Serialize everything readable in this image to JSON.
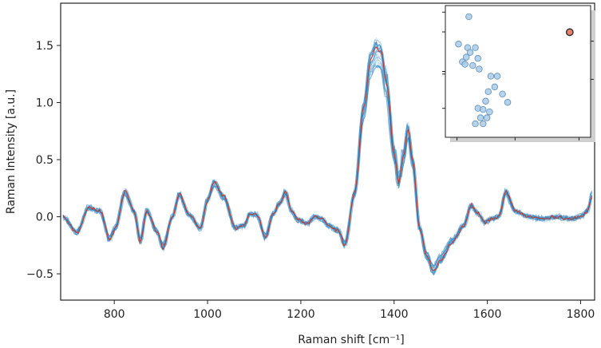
{
  "chart_data": [
    {
      "type": "line",
      "xlabel": "Raman shift [cm⁻¹]",
      "ylabel": "Raman Intensity [a.u.]",
      "xlim": [
        685,
        1830
      ],
      "ylim": [
        -0.73,
        1.87
      ],
      "xticks": [
        {
          "value": 800,
          "label": "800"
        },
        {
          "value": 1000,
          "label": "1000"
        },
        {
          "value": 1200,
          "label": "1200"
        },
        {
          "value": 1400,
          "label": "1400"
        },
        {
          "value": 1600,
          "label": "1600"
        },
        {
          "value": 1800,
          "label": "1800"
        }
      ],
      "yticks": [
        {
          "value": -0.5,
          "label": "−0.5"
        },
        {
          "value": 0.0,
          "label": "0.0"
        },
        {
          "value": 0.5,
          "label": "0.5"
        },
        {
          "value": 1.0,
          "label": "1.0"
        },
        {
          "value": 1.5,
          "label": "1.5"
        }
      ],
      "grid": false,
      "colors": {
        "background_spectra": "#5b9fd0",
        "highlighted_spectrum": "#c0392b",
        "axes": "#222222"
      },
      "background_spectra_count": 25,
      "highlighted_spectrum": {
        "x": [
          690,
          720,
          745,
          770,
          790,
          803,
          823,
          843,
          856,
          870,
          890,
          905,
          925,
          940,
          960,
          985,
          1000,
          1015,
          1035,
          1060,
          1080,
          1090,
          1105,
          1125,
          1140,
          1155,
          1168,
          1180,
          1195,
          1215,
          1230,
          1245,
          1260,
          1280,
          1295,
          1315,
          1335,
          1350,
          1362,
          1372,
          1385,
          1400,
          1410,
          1420,
          1430,
          1440,
          1455,
          1470,
          1485,
          1500,
          1525,
          1550,
          1565,
          1580,
          1595,
          1610,
          1625,
          1640,
          1660,
          1690,
          1720,
          1750,
          1780,
          1800,
          1815,
          1825
        ],
        "y": [
          0.0,
          -0.14,
          0.08,
          0.05,
          -0.2,
          -0.1,
          0.22,
          0.05,
          -0.22,
          0.06,
          -0.12,
          -0.27,
          0.0,
          0.2,
          0.02,
          -0.1,
          0.15,
          0.3,
          0.18,
          -0.1,
          -0.08,
          0.02,
          0.02,
          -0.18,
          0.02,
          0.12,
          0.22,
          0.05,
          -0.03,
          -0.06,
          0.0,
          -0.02,
          -0.08,
          -0.12,
          -0.25,
          0.2,
          0.95,
          1.38,
          1.48,
          1.45,
          1.15,
          0.55,
          0.3,
          0.52,
          0.78,
          0.5,
          -0.1,
          -0.35,
          -0.48,
          -0.38,
          -0.22,
          -0.08,
          0.1,
          0.03,
          -0.05,
          -0.02,
          0.0,
          0.22,
          0.05,
          0.0,
          -0.02,
          0.0,
          -0.02,
          0.0,
          0.05,
          0.2
        ]
      }
    },
    {
      "type": "scatter",
      "inset": true,
      "xlim": [
        0,
        10
      ],
      "ylim": [
        0,
        10
      ],
      "points": [
        {
          "x": 1.2,
          "y": 9.6
        },
        {
          "x": 0.4,
          "y": 7.3
        },
        {
          "x": 1.1,
          "y": 7.0
        },
        {
          "x": 1.7,
          "y": 7.0
        },
        {
          "x": 1.3,
          "y": 6.6
        },
        {
          "x": 1.0,
          "y": 6.2
        },
        {
          "x": 0.7,
          "y": 5.8
        },
        {
          "x": 1.9,
          "y": 6.1
        },
        {
          "x": 0.9,
          "y": 5.6
        },
        {
          "x": 1.5,
          "y": 5.5
        },
        {
          "x": 2.0,
          "y": 5.2
        },
        {
          "x": 2.9,
          "y": 4.6
        },
        {
          "x": 3.4,
          "y": 4.6
        },
        {
          "x": 3.2,
          "y": 3.7
        },
        {
          "x": 2.7,
          "y": 3.3
        },
        {
          "x": 3.8,
          "y": 3.1
        },
        {
          "x": 2.5,
          "y": 2.5
        },
        {
          "x": 4.2,
          "y": 2.4
        },
        {
          "x": 1.9,
          "y": 1.9
        },
        {
          "x": 2.3,
          "y": 1.8
        },
        {
          "x": 2.8,
          "y": 1.6
        },
        {
          "x": 2.1,
          "y": 1.1
        },
        {
          "x": 2.6,
          "y": 1.1
        },
        {
          "x": 2.3,
          "y": 0.6
        },
        {
          "x": 1.7,
          "y": 0.6
        },
        {
          "x": 9.0,
          "y": 8.3,
          "highlighted": true
        }
      ],
      "colors": {
        "points": "#a9cbe7",
        "point_edge": "#5b8db8",
        "highlighted": "#e8806b",
        "highlighted_edge": "#333333"
      }
    }
  ]
}
